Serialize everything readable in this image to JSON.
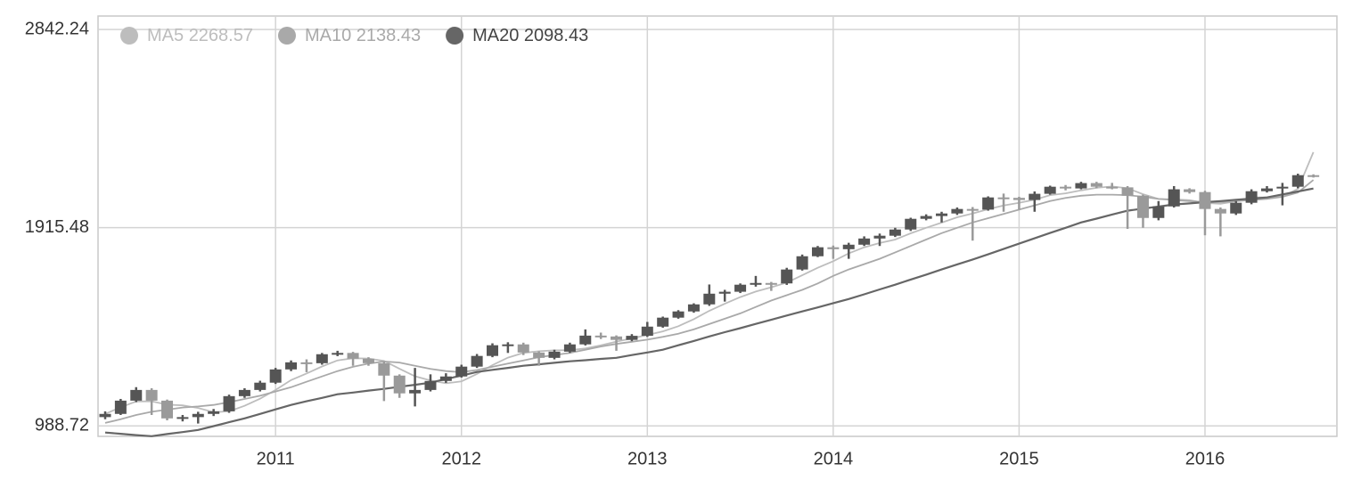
{
  "chart_data": {
    "type": "candlestick",
    "categories": [
      null,
      null,
      null,
      null,
      null,
      null,
      null,
      null,
      null,
      null,
      null,
      "2011",
      null,
      null,
      null,
      null,
      null,
      null,
      null,
      null,
      null,
      null,
      null,
      "2012",
      null,
      null,
      null,
      null,
      null,
      null,
      null,
      null,
      null,
      null,
      null,
      "2013",
      null,
      null,
      null,
      null,
      null,
      null,
      null,
      null,
      null,
      null,
      null,
      "2014",
      null,
      null,
      null,
      null,
      null,
      null,
      null,
      null,
      null,
      null,
      null,
      "2015",
      null,
      null,
      null,
      null,
      null,
      null,
      null,
      null,
      null,
      null,
      null,
      "2016",
      null,
      null,
      null,
      null,
      null,
      null,
      null
    ],
    "open": [
      1030,
      1045,
      1107,
      1157,
      1107,
      1024,
      1030,
      1045,
      1057,
      1128,
      1157,
      1191,
      1253,
      1286,
      1282,
      1324,
      1330,
      1303,
      1282,
      1224,
      1141,
      1157,
      1199,
      1220,
      1266,
      1316,
      1366,
      1370,
      1332,
      1307,
      1336,
      1370,
      1411,
      1407,
      1391,
      1410,
      1453,
      1495,
      1524,
      1557,
      1607,
      1616,
      1649,
      1657,
      1655,
      1720,
      1782,
      1824,
      1815,
      1836,
      1865,
      1878,
      1907,
      1957,
      1970,
      1982,
      2003,
      2000,
      2057,
      2055,
      2045,
      2074,
      2107,
      2099,
      2124,
      2107,
      2104,
      2065,
      1961,
      2015,
      2095,
      2082,
      2003,
      1982,
      2032,
      2086,
      2099,
      2107,
      2161
    ],
    "high": [
      1057,
      1115,
      1170,
      1165,
      1112,
      1040,
      1055,
      1068,
      1135,
      1165,
      1200,
      1260,
      1295,
      1300,
      1330,
      1340,
      1335,
      1310,
      1290,
      1230,
      1260,
      1230,
      1235,
      1275,
      1325,
      1375,
      1380,
      1378,
      1338,
      1345,
      1378,
      1440,
      1425,
      1412,
      1418,
      1475,
      1500,
      1530,
      1562,
      1650,
      1625,
      1655,
      1690,
      1662,
      1728,
      1790,
      1830,
      1832,
      1845,
      1875,
      1888,
      1915,
      1962,
      1978,
      1990,
      2010,
      2012,
      2062,
      2075,
      2060,
      2085,
      2112,
      2115,
      2130,
      2130,
      2125,
      2110,
      2070,
      2040,
      2110,
      2100,
      2088,
      2010,
      2040,
      2095,
      2110,
      2125,
      2168,
      2165
    ],
    "low": [
      1020,
      1040,
      1100,
      1040,
      1015,
      1010,
      1000,
      1035,
      1050,
      1120,
      1150,
      1185,
      1245,
      1240,
      1275,
      1315,
      1270,
      1270,
      1105,
      1120,
      1080,
      1150,
      1190,
      1215,
      1260,
      1310,
      1330,
      1320,
      1270,
      1300,
      1330,
      1365,
      1395,
      1340,
      1385,
      1405,
      1448,
      1490,
      1518,
      1550,
      1570,
      1610,
      1640,
      1620,
      1648,
      1715,
      1778,
      1770,
      1770,
      1830,
      1830,
      1872,
      1900,
      1950,
      1940,
      1975,
      1855,
      1995,
      1990,
      2000,
      1990,
      2070,
      2090,
      2095,
      2100,
      2095,
      1910,
      1915,
      1950,
      2010,
      2075,
      1880,
      1875,
      1975,
      2025,
      2080,
      2020,
      2100,
      2150
    ],
    "close": [
      1045,
      1107,
      1157,
      1107,
      1024,
      1030,
      1045,
      1057,
      1128,
      1157,
      1191,
      1253,
      1286,
      1282,
      1324,
      1330,
      1303,
      1282,
      1224,
      1141,
      1157,
      1199,
      1220,
      1266,
      1316,
      1366,
      1370,
      1332,
      1307,
      1336,
      1370,
      1411,
      1407,
      1391,
      1410,
      1453,
      1495,
      1524,
      1557,
      1607,
      1616,
      1649,
      1657,
      1655,
      1720,
      1782,
      1824,
      1815,
      1836,
      1865,
      1878,
      1907,
      1957,
      1970,
      1982,
      2003,
      2000,
      2057,
      2055,
      2045,
      2074,
      2107,
      2099,
      2124,
      2107,
      2104,
      2065,
      1961,
      2015,
      2095,
      2082,
      2003,
      1982,
      2032,
      2086,
      2099,
      2107,
      2161,
      2157
    ],
    "up_color": "#555555",
    "down_color": "#9a9a9a",
    "series": [
      {
        "name": "MA5",
        "color": "#bdbdbd",
        "values": [
          1045,
          1076,
          1103,
          1104,
          1088,
          1085,
          1073,
          1053,
          1057,
          1083,
          1116,
          1157,
          1203,
          1234,
          1267,
          1295,
          1305,
          1304,
          1293,
          1256,
          1221,
          1201,
          1188,
          1197,
          1232,
          1273,
          1308,
          1330,
          1338,
          1342,
          1343,
          1351,
          1366,
          1383,
          1398,
          1414,
          1431,
          1455,
          1488,
          1527,
          1560,
          1591,
          1617,
          1637,
          1659,
          1693,
          1728,
          1759,
          1795,
          1824,
          1844,
          1860,
          1889,
          1915,
          1939,
          1964,
          1982,
          2002,
          2019,
          2032,
          2046,
          2068,
          2076,
          2090,
          2102,
          2108,
          2100,
          2072,
          2050,
          2048,
          2044,
          2031,
          2027,
          2039,
          2057,
          2057,
          2061,
          2097,
          2268.57
        ]
      },
      {
        "name": "MA10",
        "color": "#a9a9a9",
        "values": [
          1003,
          1020,
          1040,
          1055,
          1065,
          1075,
          1080,
          1087,
          1100,
          1115,
          1130,
          1150,
          1170,
          1195,
          1220,
          1245,
          1265,
          1280,
          1290,
          1285,
          1270,
          1255,
          1245,
          1240,
          1250,
          1265,
          1280,
          1295,
          1310,
          1320,
          1330,
          1345,
          1360,
          1372,
          1382,
          1392,
          1405,
          1420,
          1440,
          1465,
          1490,
          1515,
          1545,
          1575,
          1600,
          1625,
          1655,
          1690,
          1720,
          1745,
          1770,
          1800,
          1830,
          1860,
          1890,
          1915,
          1940,
          1960,
          1980,
          2000,
          2020,
          2040,
          2055,
          2065,
          2070,
          2070,
          2068,
          2060,
          2050,
          2045,
          2040,
          2035,
          2035,
          2040,
          2045,
          2050,
          2060,
          2080,
          2138.43
        ]
      },
      {
        "name": "MA20",
        "color": "#666666",
        "values": [
          958,
          952,
          946,
          941,
          951,
          960,
          970,
          988,
          1006,
          1024,
          1045,
          1066,
          1087,
          1104,
          1120,
          1137,
          1145,
          1154,
          1162,
          1172,
          1181,
          1191,
          1208,
          1224,
          1241,
          1251,
          1260,
          1270,
          1277,
          1284,
          1291,
          1296,
          1302,
          1307,
          1320,
          1332,
          1345,
          1366,
          1386,
          1407,
          1427,
          1446,
          1466,
          1485,
          1505,
          1524,
          1543,
          1563,
          1582,
          1604,
          1627,
          1649,
          1673,
          1696,
          1720,
          1744,
          1767,
          1791,
          1816,
          1841,
          1866,
          1891,
          1915,
          1940,
          1958,
          1977,
          1995,
          2005,
          2014,
          2024,
          2029,
          2035,
          2040,
          2046,
          2051,
          2057,
          2071,
          2085,
          2098.43
        ]
      }
    ],
    "ylim": [
      940,
      2905
    ],
    "yticks": [
      988.72,
      1915.48,
      2842.24
    ],
    "grid": true,
    "legend": "top-left"
  }
}
